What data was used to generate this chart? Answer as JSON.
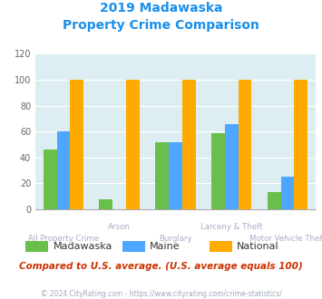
{
  "title_line1": "2019 Madawaska",
  "title_line2": "Property Crime Comparison",
  "categories": [
    "All Property Crime",
    "Arson",
    "Burglary",
    "Larceny & Theft",
    "Motor Vehicle Theft"
  ],
  "madawaska": [
    46,
    8,
    52,
    59,
    13
  ],
  "maine": [
    60,
    0,
    52,
    66,
    25
  ],
  "national": [
    100,
    100,
    100,
    100,
    100
  ],
  "color_madawaska": "#6abf4b",
  "color_maine": "#4da6ff",
  "color_national": "#ffaa00",
  "color_title": "#1a8fea",
  "color_bg_chart": "#ddeef2",
  "color_bg_fig": "#ffffff",
  "color_xlabel_upper": "#b0a8c8",
  "color_xlabel_lower": "#b0a8c8",
  "color_footnote": "#a0a8b8",
  "color_compare_text": "#cc3300",
  "ylim": [
    0,
    120
  ],
  "yticks": [
    0,
    20,
    40,
    60,
    80,
    100,
    120
  ],
  "footnote": "© 2024 CityRating.com - https://www.cityrating.com/crime-statistics/",
  "compare_text": "Compared to U.S. average. (U.S. average equals 100)"
}
